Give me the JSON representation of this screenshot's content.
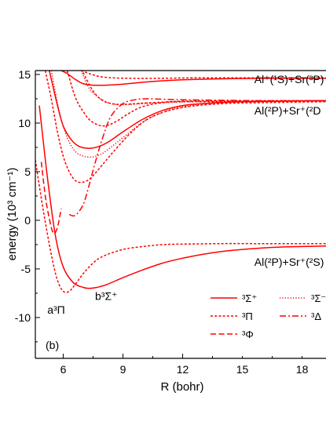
{
  "chart_data": {
    "type": "line",
    "panel_label": "(b)",
    "xlabel": "R (bohr)",
    "ylabel": "energy (10³ cm⁻¹)",
    "xlim": [
      4.6,
      19.2
    ],
    "ylim": [
      -14.2,
      15.4
    ],
    "xticks": [
      6,
      9,
      12,
      15,
      18
    ],
    "yticks": [
      -10,
      -5,
      0,
      5,
      10,
      15
    ],
    "grid": false,
    "line_color": "#ff0000",
    "legend_position": "bottom-right",
    "legend": [
      {
        "label": "³Σ⁺",
        "style": "solid"
      },
      {
        "label": "³Σ⁻",
        "style": "dotted"
      },
      {
        "label": "³Π",
        "style": "dashed-short"
      },
      {
        "label": "³Δ",
        "style": "dash-dot"
      },
      {
        "label": "³Φ",
        "style": "dashed-long"
      }
    ],
    "annotations": [
      {
        "text": "Al⁺(¹S)+Sr(³P)",
        "x": 15.6,
        "y": 14.1
      },
      {
        "text": "Al(²P)+Sr⁺(²D",
        "x": 15.6,
        "y": 10.9
      },
      {
        "text": "Al(²P)+Sr⁺(²S)",
        "x": 15.6,
        "y": -4.7
      },
      {
        "text": "a³Π",
        "x": 5.2,
        "y": -9.6
      },
      {
        "text": "b³Σ⁺",
        "x": 7.6,
        "y": -8.2
      }
    ],
    "series": [
      {
        "label": "³Σ⁺",
        "style": "solid",
        "x": [
          4.8,
          5.2,
          5.6,
          6.0,
          6.5,
          7.0,
          7.3,
          7.7,
          8.2,
          9.0,
          10.0,
          11.0,
          12.0,
          13.0,
          14.0,
          15.0,
          16.0,
          17.0,
          18.0,
          19.2
        ],
        "y": [
          11.8,
          4.5,
          -1.5,
          -4.8,
          -6.4,
          -6.9,
          -7.0,
          -6.9,
          -6.6,
          -5.9,
          -5.1,
          -4.4,
          -3.9,
          -3.5,
          -3.2,
          -3.0,
          -2.85,
          -2.75,
          -2.7,
          -2.65
        ]
      },
      {
        "label": "³Π",
        "style": "dashed-short",
        "x": [
          4.6,
          5.0,
          5.4,
          5.7,
          6.0,
          6.3,
          6.6,
          7.0,
          7.5,
          8.0,
          9.0,
          10.0,
          11.0,
          12.0,
          14.0,
          16.0,
          18.0,
          19.2
        ],
        "y": [
          6.2,
          1.0,
          -3.5,
          -6.1,
          -7.3,
          -7.3,
          -6.6,
          -5.5,
          -4.4,
          -3.7,
          -3.0,
          -2.7,
          -2.5,
          -2.45,
          -2.4,
          -2.4,
          -2.4,
          -2.4
        ]
      },
      {
        "label": "³Φ",
        "style": "dashed-long",
        "x": [
          4.9,
          5.1,
          5.3,
          5.5,
          5.7,
          5.9
        ],
        "y": [
          6.0,
          2.5,
          0.2,
          -1.3,
          -0.8,
          1.2
        ]
      },
      {
        "label": "³Σ⁺",
        "style": "solid",
        "x": [
          5.3,
          5.7,
          6.0,
          6.4,
          6.8,
          7.3,
          7.8,
          8.3,
          9.0,
          10.0,
          11.0,
          12.0,
          13.0,
          15.0,
          17.0,
          19.2
        ],
        "y": [
          15.4,
          11.9,
          9.7,
          8.3,
          7.6,
          7.4,
          7.6,
          8.1,
          9.1,
          10.4,
          11.3,
          11.8,
          12.0,
          12.2,
          12.25,
          12.3
        ]
      },
      {
        "label": "³Π",
        "style": "dashed-short",
        "x": [
          5.1,
          5.4,
          5.7,
          6.0,
          6.3,
          6.6,
          6.9,
          7.3,
          7.8,
          8.5,
          9.5,
          10.5,
          12.0,
          14.0,
          16.0,
          19.2
        ],
        "y": [
          15.4,
          12.5,
          9.2,
          6.6,
          5.0,
          4.1,
          3.9,
          4.2,
          5.3,
          7.0,
          9.2,
          10.7,
          11.6,
          12.0,
          12.1,
          12.2
        ]
      },
      {
        "label": "³Σ⁻",
        "style": "dotted",
        "x": [
          5.4,
          5.8,
          6.2,
          6.6,
          7.0,
          7.4,
          7.8,
          8.2,
          9.0,
          10.0,
          11.0,
          12.0,
          14.0,
          16.0,
          19.2
        ],
        "y": [
          15.4,
          11.2,
          8.5,
          7.1,
          6.6,
          6.5,
          6.7,
          7.2,
          8.5,
          10.1,
          11.1,
          11.7,
          12.1,
          12.2,
          12.3
        ]
      },
      {
        "label": "³Δ",
        "style": "dash-dot",
        "x": [
          6.3,
          6.6,
          7.0,
          7.3,
          7.6,
          8.0,
          8.4,
          9.0,
          9.6,
          10.2,
          11.0,
          12.0,
          14.0,
          16.0,
          19.2
        ],
        "y": [
          0.6,
          0.5,
          1.6,
          3.6,
          5.9,
          8.6,
          10.7,
          12.0,
          12.4,
          12.5,
          12.45,
          12.4,
          12.35,
          12.3,
          12.3
        ]
      },
      {
        "label": "³Π",
        "style": "dashed-short",
        "x": [
          6.2,
          6.6,
          7.0,
          7.4,
          8.0,
          8.6,
          9.3,
          10.0,
          11.0,
          12.0,
          14.0,
          19.2
        ],
        "y": [
          15.4,
          12.7,
          11.2,
          10.2,
          9.7,
          10.1,
          11.0,
          11.7,
          12.1,
          12.2,
          12.2,
          12.3
        ]
      },
      {
        "label": "³Π",
        "style": "dashed-short",
        "x": [
          7.0,
          7.5,
          8.0,
          8.6,
          9.3,
          10.0,
          11.0,
          12.0,
          14.0,
          19.2
        ],
        "y": [
          15.2,
          13.3,
          12.3,
          11.95,
          11.95,
          12.05,
          12.15,
          12.25,
          12.3,
          12.3
        ]
      },
      {
        "label": "³Σ⁻",
        "style": "dotted",
        "x": [
          6.9,
          7.3,
          7.8,
          8.4,
          9.0,
          10.0,
          11.0,
          12.5,
          14.0,
          19.2
        ],
        "y": [
          15.4,
          13.6,
          12.6,
          12.0,
          11.9,
          12.0,
          12.1,
          12.2,
          12.25,
          12.3
        ]
      },
      {
        "label": "³Σ⁺",
        "style": "solid",
        "x": [
          5.9,
          6.2,
          6.6,
          7.0,
          7.5,
          8.2,
          9.0,
          10.0,
          11.0,
          12.0,
          14.0,
          16.0,
          19.2
        ],
        "y": [
          15.4,
          15.1,
          14.5,
          14.05,
          13.9,
          13.9,
          14.0,
          14.2,
          14.35,
          14.45,
          14.55,
          14.6,
          14.6
        ]
      },
      {
        "label": "³Π",
        "style": "dashed-short",
        "x": [
          6.9,
          7.3,
          7.8,
          8.5,
          9.5,
          10.5,
          11.5,
          12.5,
          14.0,
          16.0,
          19.2
        ],
        "y": [
          15.4,
          15.1,
          14.8,
          14.65,
          14.6,
          14.6,
          14.62,
          14.65,
          14.65,
          14.65,
          14.65
        ]
      }
    ]
  }
}
